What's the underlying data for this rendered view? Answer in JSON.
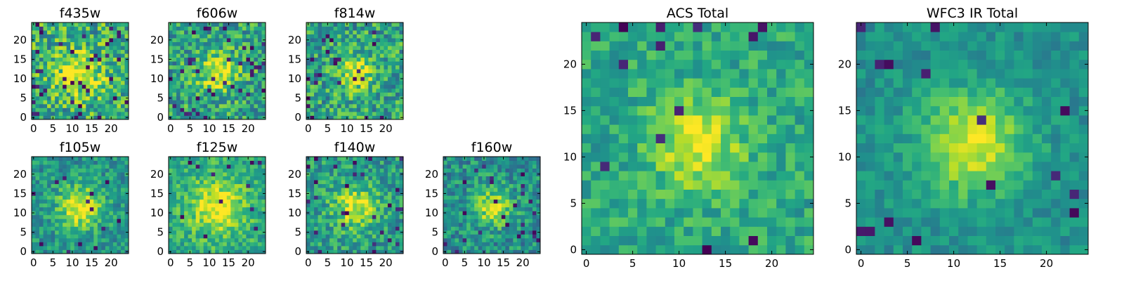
{
  "figure": {
    "background": "#ffffff"
  },
  "chart_data": [
    {
      "type": "heatmap",
      "title": "f435w",
      "grid_size": 25,
      "x_ticks": [
        0,
        5,
        10,
        15,
        20
      ],
      "y_ticks": [
        0,
        5,
        10,
        15,
        20
      ],
      "xlim": [
        -0.5,
        24.5
      ],
      "ylim": [
        -0.5,
        24.5
      ],
      "colormap": "viridis",
      "noise": 0.55,
      "peak": 0.35,
      "spread": 4.0,
      "base": 0.62,
      "seed": 11,
      "dark_fraction": 0.06
    },
    {
      "type": "heatmap",
      "title": "f606w",
      "grid_size": 25,
      "x_ticks": [
        0,
        5,
        10,
        15,
        20
      ],
      "y_ticks": [
        0,
        5,
        10,
        15,
        20
      ],
      "xlim": [
        -0.5,
        24.5
      ],
      "ylim": [
        -0.5,
        24.5
      ],
      "colormap": "viridis",
      "noise": 0.5,
      "peak": 0.4,
      "spread": 3.5,
      "base": 0.58,
      "seed": 23,
      "dark_fraction": 0.05
    },
    {
      "type": "heatmap",
      "title": "f814w",
      "grid_size": 25,
      "x_ticks": [
        0,
        5,
        10,
        15,
        20
      ],
      "y_ticks": [
        0,
        5,
        10,
        15,
        20
      ],
      "xlim": [
        -0.5,
        24.5
      ],
      "ylim": [
        -0.5,
        24.5
      ],
      "colormap": "viridis",
      "noise": 0.5,
      "peak": 0.4,
      "spread": 3.0,
      "base": 0.58,
      "seed": 37,
      "dark_fraction": 0.04
    },
    {
      "type": "heatmap",
      "title": "f105w",
      "grid_size": 25,
      "x_ticks": [
        0,
        5,
        10,
        15,
        20
      ],
      "y_ticks": [
        0,
        5,
        10,
        15,
        20
      ],
      "xlim": [
        -0.5,
        24.5
      ],
      "ylim": [
        -0.5,
        24.5
      ],
      "colormap": "viridis",
      "noise": 0.35,
      "peak": 0.45,
      "spread": 4.0,
      "base": 0.52,
      "seed": 41,
      "dark_fraction": 0.02
    },
    {
      "type": "heatmap",
      "title": "f125w",
      "grid_size": 25,
      "x_ticks": [
        0,
        5,
        10,
        15,
        20
      ],
      "y_ticks": [
        0,
        5,
        10,
        15,
        20
      ],
      "xlim": [
        -0.5,
        24.5
      ],
      "ylim": [
        -0.5,
        24.5
      ],
      "colormap": "viridis",
      "noise": 0.35,
      "peak": 0.4,
      "spread": 5.0,
      "base": 0.6,
      "seed": 53,
      "dark_fraction": 0.02
    },
    {
      "type": "heatmap",
      "title": "f140w",
      "grid_size": 25,
      "x_ticks": [
        0,
        5,
        10,
        15,
        20
      ],
      "y_ticks": [
        0,
        5,
        10,
        15,
        20
      ],
      "xlim": [
        -0.5,
        24.5
      ],
      "ylim": [
        -0.5,
        24.5
      ],
      "colormap": "viridis",
      "noise": 0.4,
      "peak": 0.4,
      "spread": 4.0,
      "base": 0.55,
      "seed": 67,
      "dark_fraction": 0.04
    },
    {
      "type": "heatmap",
      "title": "f160w",
      "grid_size": 25,
      "x_ticks": [
        0,
        5,
        10,
        15,
        20
      ],
      "y_ticks": [
        0,
        5,
        10,
        15,
        20
      ],
      "xlim": [
        -0.5,
        24.5
      ],
      "ylim": [
        -0.5,
        24.5
      ],
      "colormap": "viridis",
      "noise": 0.4,
      "peak": 0.4,
      "spread": 3.5,
      "base": 0.5,
      "seed": 79,
      "dark_fraction": 0.04
    },
    {
      "type": "heatmap",
      "title": "ACS Total",
      "grid_size": 25,
      "x_ticks": [
        0,
        5,
        10,
        15,
        20
      ],
      "y_ticks": [
        0,
        5,
        10,
        15,
        20
      ],
      "xlim": [
        -0.5,
        24.5
      ],
      "ylim": [
        -0.5,
        24.5
      ],
      "colormap": "viridis",
      "noise": 0.3,
      "peak": 0.35,
      "spread": 3.5,
      "base": 0.6,
      "seed": 97,
      "dark_fraction": 0.03
    },
    {
      "type": "heatmap",
      "title": "WFC3 IR Total",
      "grid_size": 25,
      "x_ticks": [
        0,
        5,
        10,
        15,
        20
      ],
      "y_ticks": [
        0,
        5,
        10,
        15,
        20
      ],
      "xlim": [
        -0.5,
        24.5
      ],
      "ylim": [
        -0.5,
        24.5
      ],
      "colormap": "viridis",
      "noise": 0.22,
      "peak": 0.45,
      "spread": 4.0,
      "base": 0.5,
      "seed": 113,
      "dark_fraction": 0.02
    }
  ]
}
